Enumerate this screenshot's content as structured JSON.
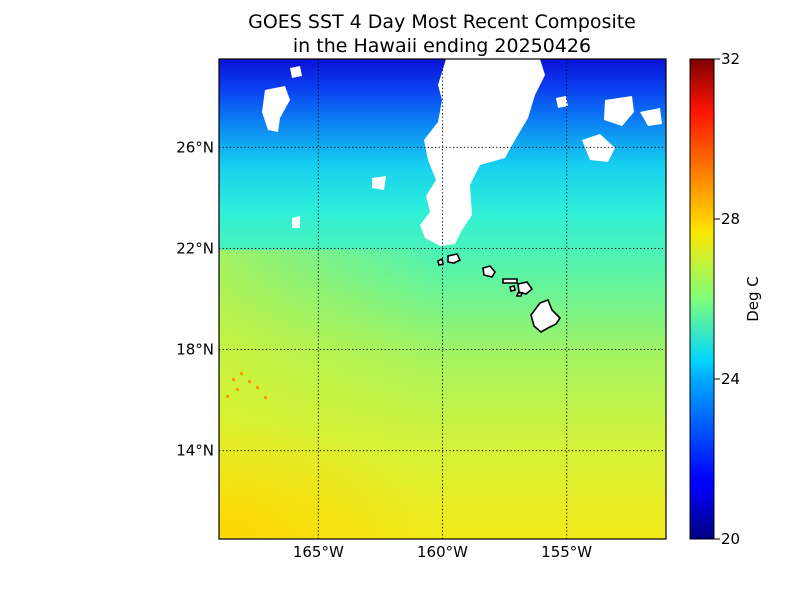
{
  "title_line1": "GOES SST 4 Day Most Recent Composite",
  "title_line2": "in the Hawaii ending 20250426",
  "map": {
    "lon_range": [
      -169,
      -151
    ],
    "lat_range": [
      10.5,
      29.5
    ],
    "meridians": [
      {
        "value": -165,
        "label": "165°W"
      },
      {
        "value": -160,
        "label": "160°W"
      },
      {
        "value": -155,
        "label": "155°W"
      }
    ],
    "parallels": [
      {
        "value": 14,
        "label": "14°N"
      },
      {
        "value": 18,
        "label": "18°N"
      },
      {
        "value": 22,
        "label": "22°N"
      },
      {
        "value": 26,
        "label": "26°N"
      }
    ],
    "grid": "dotted",
    "land_color": "#ffffff",
    "missing_data_color": "#ffffff"
  },
  "colorbar": {
    "label": "Deg C",
    "min": 20,
    "max": 32,
    "ticks": [
      "20",
      "24",
      "28",
      "32"
    ],
    "colormap": "jet",
    "position": "right"
  }
}
